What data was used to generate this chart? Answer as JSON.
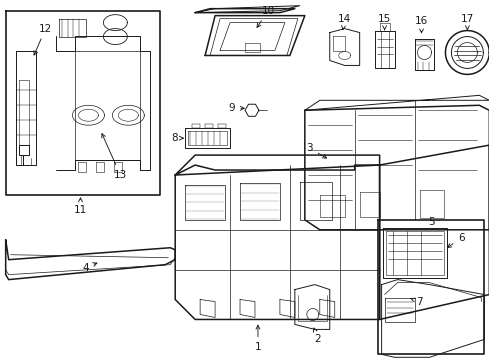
{
  "bg": "#ffffff",
  "lc": "#1a1a1a",
  "lw": 0.7,
  "label_fs": 7.5
}
